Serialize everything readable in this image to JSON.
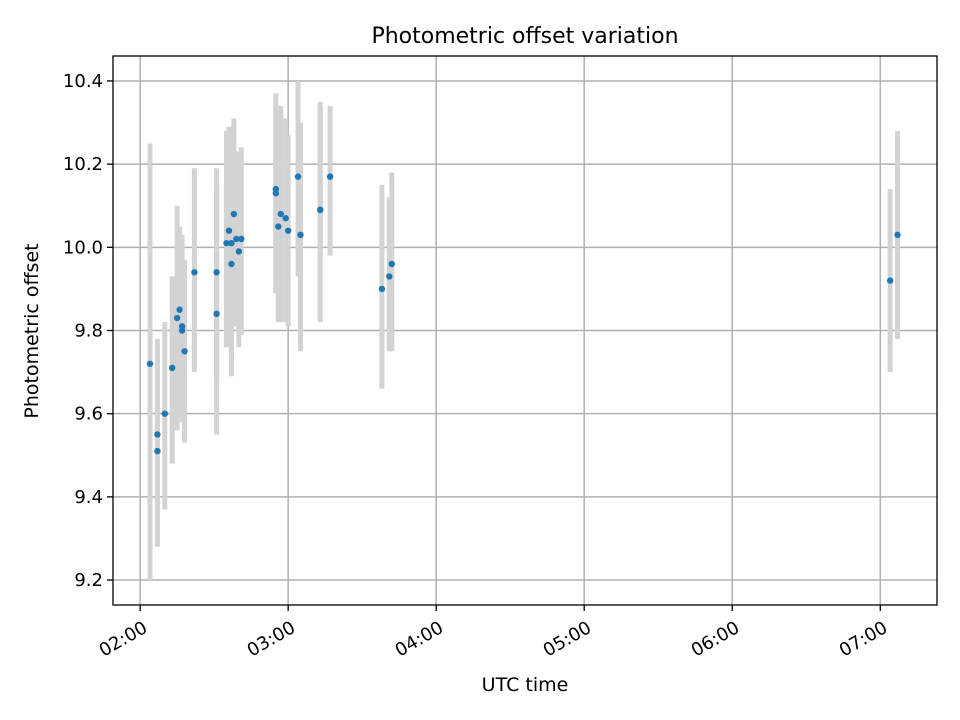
{
  "chart_data": {
    "type": "scatter",
    "title": "Photometric offset variation",
    "xlabel": "UTC time",
    "ylabel": "Photometric offset",
    "x_unit": "UTC time (HH:MM)",
    "xlim": [
      "01:49",
      "07:23"
    ],
    "ylim": [
      9.14,
      10.46
    ],
    "x_ticks": [
      "02:00",
      "03:00",
      "04:00",
      "05:00",
      "06:00",
      "07:00"
    ],
    "y_ticks": [
      "9.2",
      "9.4",
      "9.6",
      "9.8",
      "10.0",
      "10.2",
      "10.4"
    ],
    "grid": true,
    "legend": "none",
    "colors": {
      "point": "#1f77b4",
      "error_bar": "#d3d3d3"
    },
    "points": [
      {
        "x": "02:04",
        "y": 9.72,
        "y_low": 9.2,
        "y_high": 10.25
      },
      {
        "x": "02:07",
        "y": 9.55,
        "y_low": 9.32,
        "y_high": 9.78
      },
      {
        "x": "02:07",
        "y": 9.51,
        "y_low": 9.28,
        "y_high": 9.74
      },
      {
        "x": "02:10",
        "y": 9.6,
        "y_low": 9.37,
        "y_high": 9.82
      },
      {
        "x": "02:13",
        "y": 9.71,
        "y_low": 9.48,
        "y_high": 9.93
      },
      {
        "x": "02:15",
        "y": 9.83,
        "y_low": 9.56,
        "y_high": 10.1
      },
      {
        "x": "02:16",
        "y": 9.85,
        "y_low": 9.64,
        "y_high": 10.05
      },
      {
        "x": "02:17",
        "y": 9.81,
        "y_low": 9.58,
        "y_high": 10.03
      },
      {
        "x": "02:17",
        "y": 9.8,
        "y_low": 9.62,
        "y_high": 9.99
      },
      {
        "x": "02:18",
        "y": 9.75,
        "y_low": 9.53,
        "y_high": 9.97
      },
      {
        "x": "02:22",
        "y": 9.94,
        "y_low": 9.7,
        "y_high": 10.19
      },
      {
        "x": "02:31",
        "y": 9.94,
        "y_low": 9.68,
        "y_high": 10.19
      },
      {
        "x": "02:31",
        "y": 9.84,
        "y_low": 9.55,
        "y_high": 10.14
      },
      {
        "x": "02:35",
        "y": 10.01,
        "y_low": 9.76,
        "y_high": 10.28
      },
      {
        "x": "02:36",
        "y": 10.04,
        "y_low": 9.79,
        "y_high": 10.29
      },
      {
        "x": "02:37",
        "y": 10.01,
        "y_low": 9.74,
        "y_high": 10.29
      },
      {
        "x": "02:37",
        "y": 9.96,
        "y_low": 9.69,
        "y_high": 10.23
      },
      {
        "x": "02:38",
        "y": 10.08,
        "y_low": 9.86,
        "y_high": 10.31
      },
      {
        "x": "02:39",
        "y": 10.02,
        "y_low": 9.81,
        "y_high": 10.23
      },
      {
        "x": "02:40",
        "y": 9.99,
        "y_low": 9.76,
        "y_high": 10.23
      },
      {
        "x": "02:41",
        "y": 10.02,
        "y_low": 9.79,
        "y_high": 10.24
      },
      {
        "x": "02:55",
        "y": 10.14,
        "y_low": 9.92,
        "y_high": 10.37
      },
      {
        "x": "02:55",
        "y": 10.13,
        "y_low": 9.89,
        "y_high": 10.36
      },
      {
        "x": "02:56",
        "y": 10.05,
        "y_low": 9.82,
        "y_high": 10.29
      },
      {
        "x": "02:57",
        "y": 10.08,
        "y_low": 9.82,
        "y_high": 10.34
      },
      {
        "x": "02:59",
        "y": 10.07,
        "y_low": 9.82,
        "y_high": 10.31
      },
      {
        "x": "03:00",
        "y": 10.04,
        "y_low": 9.81,
        "y_high": 10.27
      },
      {
        "x": "03:04",
        "y": 10.17,
        "y_low": 9.93,
        "y_high": 10.4
      },
      {
        "x": "03:05",
        "y": 10.03,
        "y_low": 9.75,
        "y_high": 10.3
      },
      {
        "x": "03:13",
        "y": 10.09,
        "y_low": 9.82,
        "y_high": 10.35
      },
      {
        "x": "03:13",
        "y": 10.09,
        "y_low": 9.83,
        "y_high": 10.34
      },
      {
        "x": "03:17",
        "y": 10.17,
        "y_low": 9.98,
        "y_high": 10.34
      },
      {
        "x": "03:38",
        "y": 9.9,
        "y_low": 9.66,
        "y_high": 10.15
      },
      {
        "x": "03:41",
        "y": 9.93,
        "y_low": 9.75,
        "y_high": 10.12
      },
      {
        "x": "03:42",
        "y": 9.96,
        "y_low": 9.75,
        "y_high": 10.18
      },
      {
        "x": "07:04",
        "y": 9.92,
        "y_low": 9.7,
        "y_high": 10.14
      },
      {
        "x": "07:07",
        "y": 10.03,
        "y_low": 9.78,
        "y_high": 10.28
      }
    ]
  }
}
